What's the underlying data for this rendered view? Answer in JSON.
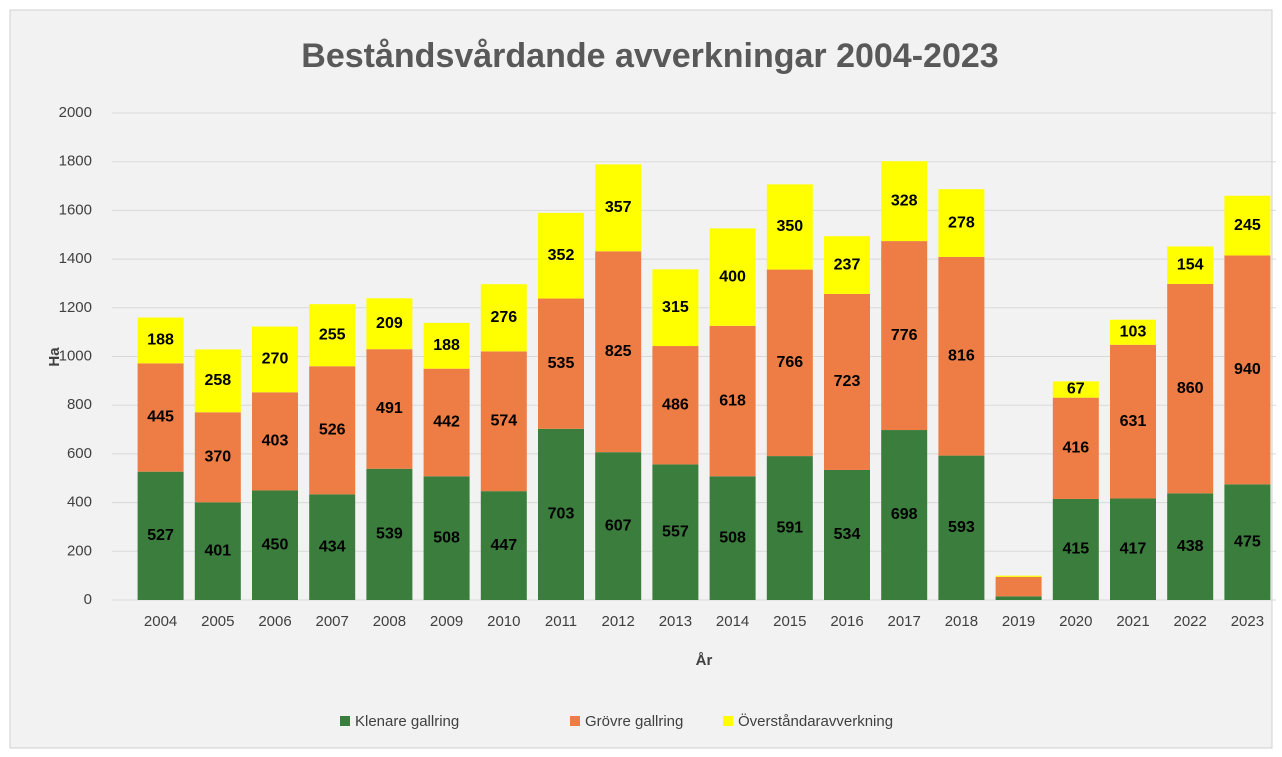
{
  "chart_data": {
    "type": "stacked_bar",
    "title": "Beståndsvårdande avverkningar 2004-2023",
    "xlabel": "År",
    "ylabel": "Ha",
    "categories": [
      "2004",
      "2005",
      "2006",
      "2007",
      "2008",
      "2009",
      "2010",
      "2011",
      "2012",
      "2013",
      "2014",
      "2015",
      "2016",
      "2017",
      "2018",
      "2019",
      "2020",
      "2021",
      "2022",
      "2023"
    ],
    "series": [
      {
        "name": "Klenare gallring",
        "color": "#3a7d3c",
        "values": [
          527,
          401,
          450,
          434,
          539,
          508,
          447,
          703,
          607,
          557,
          508,
          591,
          534,
          698,
          593,
          15,
          415,
          417,
          438,
          475
        ],
        "value_labels": [
          "527",
          "401",
          "450",
          "434",
          "539",
          "508",
          "447",
          "703",
          "607",
          "557",
          "508",
          "591",
          "534",
          "698",
          "593",
          null,
          "415",
          "417",
          "438",
          "475"
        ]
      },
      {
        "name": "Grövre gallring",
        "color": "#ed7d45",
        "values": [
          445,
          370,
          403,
          526,
          491,
          442,
          574,
          535,
          825,
          486,
          618,
          766,
          723,
          776,
          816,
          80,
          416,
          631,
          860,
          940
        ],
        "value_labels": [
          "445",
          "370",
          "403",
          "526",
          "491",
          "442",
          "574",
          "535",
          "825",
          "486",
          "618",
          "766",
          "723",
          "776",
          "816",
          null,
          "416",
          "631",
          "860",
          "940"
        ]
      },
      {
        "name": "Överståndaravverkning",
        "color": "#ffff00",
        "values": [
          188,
          258,
          270,
          255,
          209,
          188,
          276,
          352,
          357,
          315,
          400,
          350,
          237,
          328,
          278,
          5,
          67,
          103,
          154,
          245
        ],
        "value_labels": [
          "188",
          "258",
          "270",
          "255",
          "209",
          "188",
          "276",
          "352",
          "357",
          "315",
          "400",
          "350",
          "237",
          "328",
          "278",
          null,
          "67",
          "103",
          "154",
          "245"
        ]
      }
    ],
    "ylim": [
      0,
      2000
    ],
    "yticks": [
      0,
      200,
      400,
      600,
      800,
      1000,
      1200,
      1400,
      1600,
      1800,
      2000
    ],
    "grid": true,
    "legend": "bottom"
  }
}
